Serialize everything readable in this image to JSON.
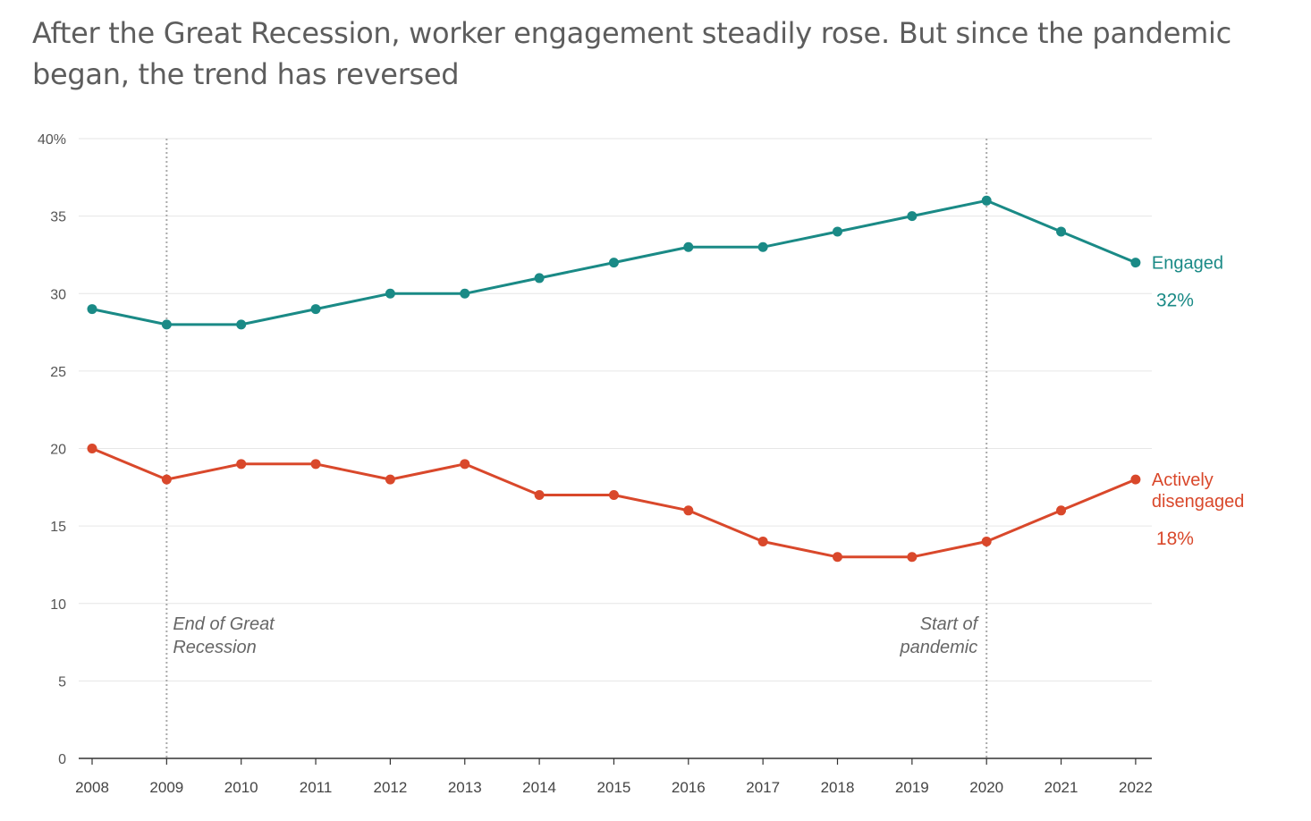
{
  "chart_data": {
    "type": "line",
    "title": "After the Great Recession, worker engagement steadily rose. But since the pandemic began, the trend has reversed",
    "x": [
      2008,
      2009,
      2010,
      2011,
      2012,
      2013,
      2014,
      2015,
      2016,
      2017,
      2018,
      2019,
      2020,
      2021,
      2022
    ],
    "y_ticks": [
      "0",
      "5",
      "10",
      "15",
      "20",
      "25",
      "30",
      "35",
      "40%"
    ],
    "ylim": [
      0,
      40
    ],
    "grid": true,
    "series": [
      {
        "name": "Engaged",
        "end_label": "32%",
        "color": "#1a8a86",
        "values": [
          29,
          28,
          28,
          29,
          30,
          30,
          31,
          32,
          33,
          33,
          34,
          35,
          36,
          34,
          32
        ]
      },
      {
        "name_lines": [
          "Actively",
          "disengaged"
        ],
        "end_label": "18%",
        "color": "#d9482b",
        "values": [
          20,
          18,
          19,
          19,
          18,
          19,
          17,
          17,
          16,
          14,
          13,
          13,
          14,
          16,
          18
        ]
      }
    ],
    "annotations": [
      {
        "x": 2009,
        "lines": [
          "End of Great",
          "Recession"
        ]
      },
      {
        "x": 2020,
        "lines": [
          "Start of",
          "pandemic"
        ]
      }
    ]
  }
}
